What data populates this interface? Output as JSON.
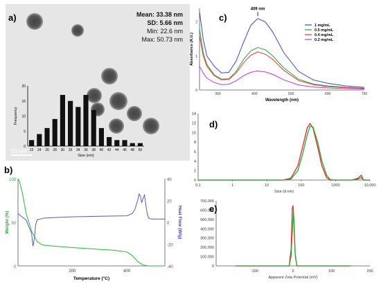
{
  "panels": {
    "a": {
      "label": "a)",
      "stats": [
        "Mean: 33.38 nm",
        "SD: 5.66 nm",
        "Min: 22.6 nm",
        "Max: 50.73 nm"
      ],
      "scale_bar": "50 nm"
    },
    "b": {
      "label": "b)"
    },
    "c": {
      "label": "c)"
    },
    "d": {
      "label": "d)"
    },
    "e": {
      "label": "e)"
    }
  },
  "chart_data": [
    {
      "id": "a-histogram",
      "type": "bar",
      "xlabel": "Size (nm)",
      "ylabel": "Frequency",
      "categories": [
        "22",
        "24",
        "26",
        "28",
        "30",
        "32",
        "34",
        "36",
        "38",
        "40",
        "42",
        "44",
        "46",
        "48",
        "50"
      ],
      "values": [
        2,
        4,
        6,
        9,
        17,
        15,
        13,
        17,
        12,
        6,
        3,
        2,
        2,
        1,
        1
      ],
      "ylim": [
        0,
        20
      ],
      "yticks": [
        0,
        5,
        10,
        15,
        20
      ],
      "bar_color": "#111111"
    },
    {
      "id": "b-tga-dsc",
      "type": "line",
      "xlabel": "Temperature (°C)",
      "ylabel": "Weight (%)",
      "y2label": "Heat Flow (W/g)",
      "xlim": [
        0,
        540
      ],
      "ylim": [
        0,
        100
      ],
      "y2lim": [
        -40,
        40
      ],
      "xticks": [
        200,
        400
      ],
      "yticks": [
        0,
        50,
        100
      ],
      "y2ticks": [
        -40,
        -20,
        0,
        20,
        40
      ],
      "series": [
        {
          "axis": "left",
          "color": "#22bb33",
          "x": [
            0,
            5,
            15,
            30,
            50,
            70,
            90,
            120,
            200,
            300,
            350,
            400,
            420,
            440,
            460,
            480,
            540
          ],
          "y": [
            100,
            97,
            85,
            60,
            40,
            28,
            24,
            23,
            21,
            19,
            18,
            16,
            12,
            5,
            1,
            0,
            0
          ]
        },
        {
          "axis": "right",
          "color": "#5555cc",
          "x": [
            0,
            10,
            30,
            50,
            55,
            60,
            65,
            70,
            80,
            100,
            150,
            200,
            300,
            400,
            420,
            430,
            440,
            445,
            450,
            455,
            460,
            465,
            470,
            475,
            480,
            490,
            500,
            540
          ],
          "y": [
            8,
            6,
            2,
            -10,
            -22,
            -15,
            -2,
            2,
            3,
            4,
            4.5,
            5,
            5.5,
            6,
            8,
            12,
            20,
            26,
            24,
            18,
            22,
            25,
            16,
            8,
            4,
            3,
            3,
            3
          ]
        }
      ]
    },
    {
      "id": "c-uvvis",
      "type": "line",
      "xlabel": "Wavelength (nm)",
      "ylabel": "Absorbance (A.U.)",
      "xlim": [
        250,
        700
      ],
      "ylim": [
        0,
        2.4
      ],
      "xticks": [
        300,
        400,
        500,
        600,
        700
      ],
      "yticks": [
        0,
        1,
        2
      ],
      "annotation": "409 nm",
      "annotation_x": 409,
      "annotation_y": 2.15,
      "legend_position": "top-right",
      "x": [
        250,
        260,
        270,
        290,
        310,
        330,
        350,
        370,
        390,
        409,
        430,
        450,
        480,
        520,
        560,
        600,
        650,
        700
      ],
      "series": [
        {
          "name": "1 mg/mL",
          "color": "#3344dd",
          "values": [
            2.3,
            1.5,
            1.0,
            0.7,
            0.5,
            0.52,
            0.85,
            1.4,
            1.9,
            2.1,
            2.0,
            1.7,
            1.1,
            0.55,
            0.3,
            0.2,
            0.12,
            0.08
          ]
        },
        {
          "name": "0.5 mg/mL",
          "color": "#22aa33",
          "values": [
            1.8,
            1.1,
            0.75,
            0.45,
            0.32,
            0.33,
            0.55,
            0.9,
            1.15,
            1.25,
            1.18,
            1.0,
            0.65,
            0.32,
            0.18,
            0.12,
            0.08,
            0.05
          ]
        },
        {
          "name": "0.4 mg/mL",
          "color": "#ee3333",
          "values": [
            1.6,
            1.0,
            0.7,
            0.42,
            0.3,
            0.31,
            0.5,
            0.8,
            1.02,
            1.12,
            1.05,
            0.9,
            0.58,
            0.28,
            0.16,
            0.1,
            0.07,
            0.05
          ]
        },
        {
          "name": "0.2 mg/mL",
          "color": "#cc33cc",
          "values": [
            0.7,
            0.5,
            0.35,
            0.22,
            0.16,
            0.17,
            0.27,
            0.42,
            0.52,
            0.56,
            0.53,
            0.46,
            0.3,
            0.15,
            0.09,
            0.06,
            0.04,
            0.03
          ]
        }
      ]
    },
    {
      "id": "d-dls-size",
      "type": "line",
      "xscale": "log",
      "xlabel": "Size (d.nm)",
      "xlim": [
        0.1,
        10000
      ],
      "ylim": [
        0,
        14
      ],
      "xticks": [
        0.1,
        1,
        10,
        100,
        1000,
        10000
      ],
      "xticklabels": [
        "0.1",
        "1",
        "10",
        "100",
        "1000",
        "10,000"
      ],
      "yticks": [
        0,
        2,
        4,
        6,
        8,
        10,
        12,
        14
      ],
      "series": [
        {
          "color": "#ee2222",
          "x": [
            0.1,
            30,
            50,
            80,
            110,
            150,
            180,
            220,
            300,
            400,
            550,
            700,
            1000,
            3000,
            4500,
            5600,
            6500,
            10000
          ],
          "y": [
            0,
            0,
            0.4,
            3,
            7,
            11,
            11.9,
            11,
            7,
            3,
            0.5,
            0,
            0,
            0,
            0.4,
            1.0,
            0,
            0
          ]
        },
        {
          "color": "#22aa33",
          "x": [
            0.1,
            30,
            50,
            80,
            110,
            150,
            180,
            220,
            300,
            400,
            550,
            700,
            1000,
            3000,
            4500,
            5600,
            6500,
            10000
          ],
          "y": [
            0,
            0,
            0.2,
            2,
            5.5,
            9.5,
            11.3,
            11.2,
            8,
            4,
            1,
            0.1,
            0,
            0,
            0.2,
            0.5,
            0,
            0
          ]
        }
      ]
    },
    {
      "id": "e-zeta",
      "type": "line",
      "xlabel": "Apparent Zeta Potential (mV)",
      "xlim": [
        -200,
        200
      ],
      "ylim": [
        0,
        700000
      ],
      "xticks": [
        -100,
        0,
        100,
        200
      ],
      "yticks": [
        0,
        100000,
        200000,
        300000,
        400000,
        500000,
        600000,
        700000
      ],
      "yticklabels": [
        "0",
        "100,000",
        "200,000",
        "300,000",
        "400,000",
        "500,000",
        "600,000",
        "700,000"
      ],
      "series": [
        {
          "color": "#ee2222",
          "x": [
            -150,
            -10,
            -5,
            -2,
            0,
            2,
            5,
            10,
            150
          ],
          "y": [
            0,
            0,
            180000,
            620000,
            650000,
            500000,
            150000,
            0,
            0
          ]
        },
        {
          "color": "#22aa33",
          "x": [
            -150,
            -10,
            -5,
            -1,
            1,
            3,
            6,
            10,
            150
          ],
          "y": [
            0,
            0,
            100000,
            420000,
            600000,
            450000,
            100000,
            0,
            0
          ]
        }
      ]
    }
  ]
}
